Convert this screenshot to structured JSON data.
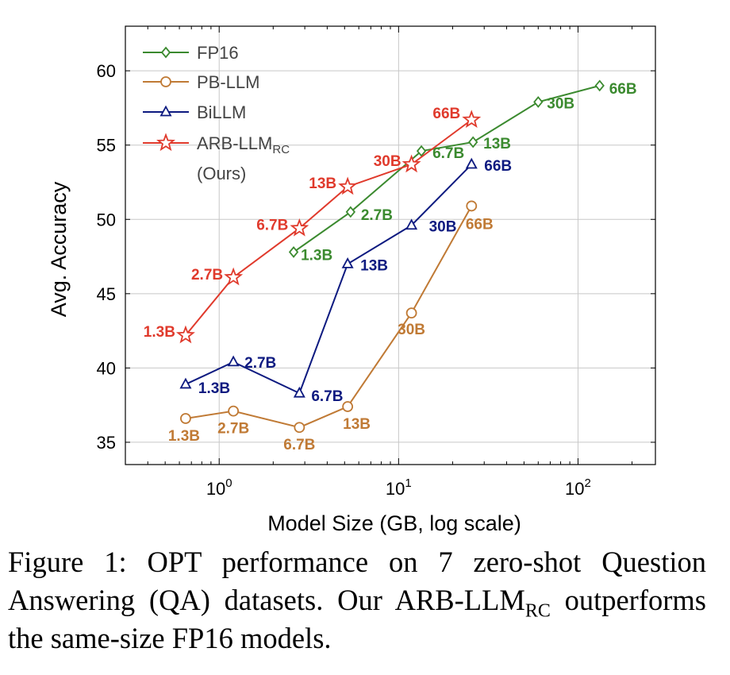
{
  "chart_data": {
    "type": "line",
    "xlabel": "Model Size (GB, log scale)",
    "ylabel": "Avg. Accuracy",
    "xscale": "log",
    "xlim": [
      0.3,
      270
    ],
    "ylim": [
      33.5,
      63
    ],
    "yticks": [
      35,
      40,
      45,
      50,
      55,
      60
    ],
    "xticks": [
      {
        "value": 1,
        "base": "10",
        "exp": "0"
      },
      {
        "value": 10,
        "base": "10",
        "exp": "1"
      },
      {
        "value": 100,
        "base": "10",
        "exp": "2"
      }
    ],
    "grid": true,
    "legend_position": "top-left",
    "series": [
      {
        "name": "FP16",
        "color": "#3b8a2f",
        "marker": "diamond",
        "points": [
          {
            "x": 2.6,
            "y": 47.8,
            "label": "1.3B"
          },
          {
            "x": 5.4,
            "y": 50.5,
            "label": "2.7B"
          },
          {
            "x": 13.4,
            "y": 54.6,
            "label": "6.7B"
          },
          {
            "x": 26,
            "y": 55.2,
            "label": "13B"
          },
          {
            "x": 60,
            "y": 57.9,
            "label": "30B"
          },
          {
            "x": 132,
            "y": 59.0,
            "label": "66B"
          }
        ]
      },
      {
        "name": "PB-LLM",
        "color": "#c07a35",
        "marker": "circle",
        "points": [
          {
            "x": 0.65,
            "y": 36.6,
            "label": "1.3B"
          },
          {
            "x": 1.2,
            "y": 37.1,
            "label": "2.7B"
          },
          {
            "x": 2.8,
            "y": 36.0,
            "label": "6.7B"
          },
          {
            "x": 5.2,
            "y": 37.4,
            "label": "13B"
          },
          {
            "x": 11.8,
            "y": 43.7,
            "label": "30B"
          },
          {
            "x": 25.5,
            "y": 50.9,
            "label": "66B"
          }
        ]
      },
      {
        "name": "BiLLM",
        "color": "#0d1a80",
        "marker": "triangle",
        "points": [
          {
            "x": 0.65,
            "y": 38.9,
            "label": "1.3B"
          },
          {
            "x": 1.2,
            "y": 40.4,
            "label": "2.7B"
          },
          {
            "x": 2.8,
            "y": 38.3,
            "label": "6.7B"
          },
          {
            "x": 5.2,
            "y": 47.0,
            "label": "13B"
          },
          {
            "x": 11.8,
            "y": 49.6,
            "label": "30B"
          },
          {
            "x": 25.5,
            "y": 53.7,
            "label": "66B"
          }
        ]
      },
      {
        "name": "ARB-LLM",
        "name_sub": "RC",
        "name_line2": "(Ours)",
        "color": "#e03a2c",
        "marker": "star",
        "points": [
          {
            "x": 0.65,
            "y": 42.2,
            "label": "1.3B"
          },
          {
            "x": 1.2,
            "y": 46.1,
            "label": "2.7B"
          },
          {
            "x": 2.8,
            "y": 49.4,
            "label": "6.7B"
          },
          {
            "x": 5.2,
            "y": 52.2,
            "label": "13B"
          },
          {
            "x": 11.8,
            "y": 53.7,
            "label": "30B"
          },
          {
            "x": 25.5,
            "y": 56.7,
            "label": "66B"
          }
        ]
      }
    ]
  },
  "caption": {
    "prefix": "Figure 1:  OPT performance on 7 zero-shot Question Answering (QA) datasets. Our ARB-LLM",
    "sub": "RC",
    "suffix": " outperforms the same-size FP16 models."
  }
}
